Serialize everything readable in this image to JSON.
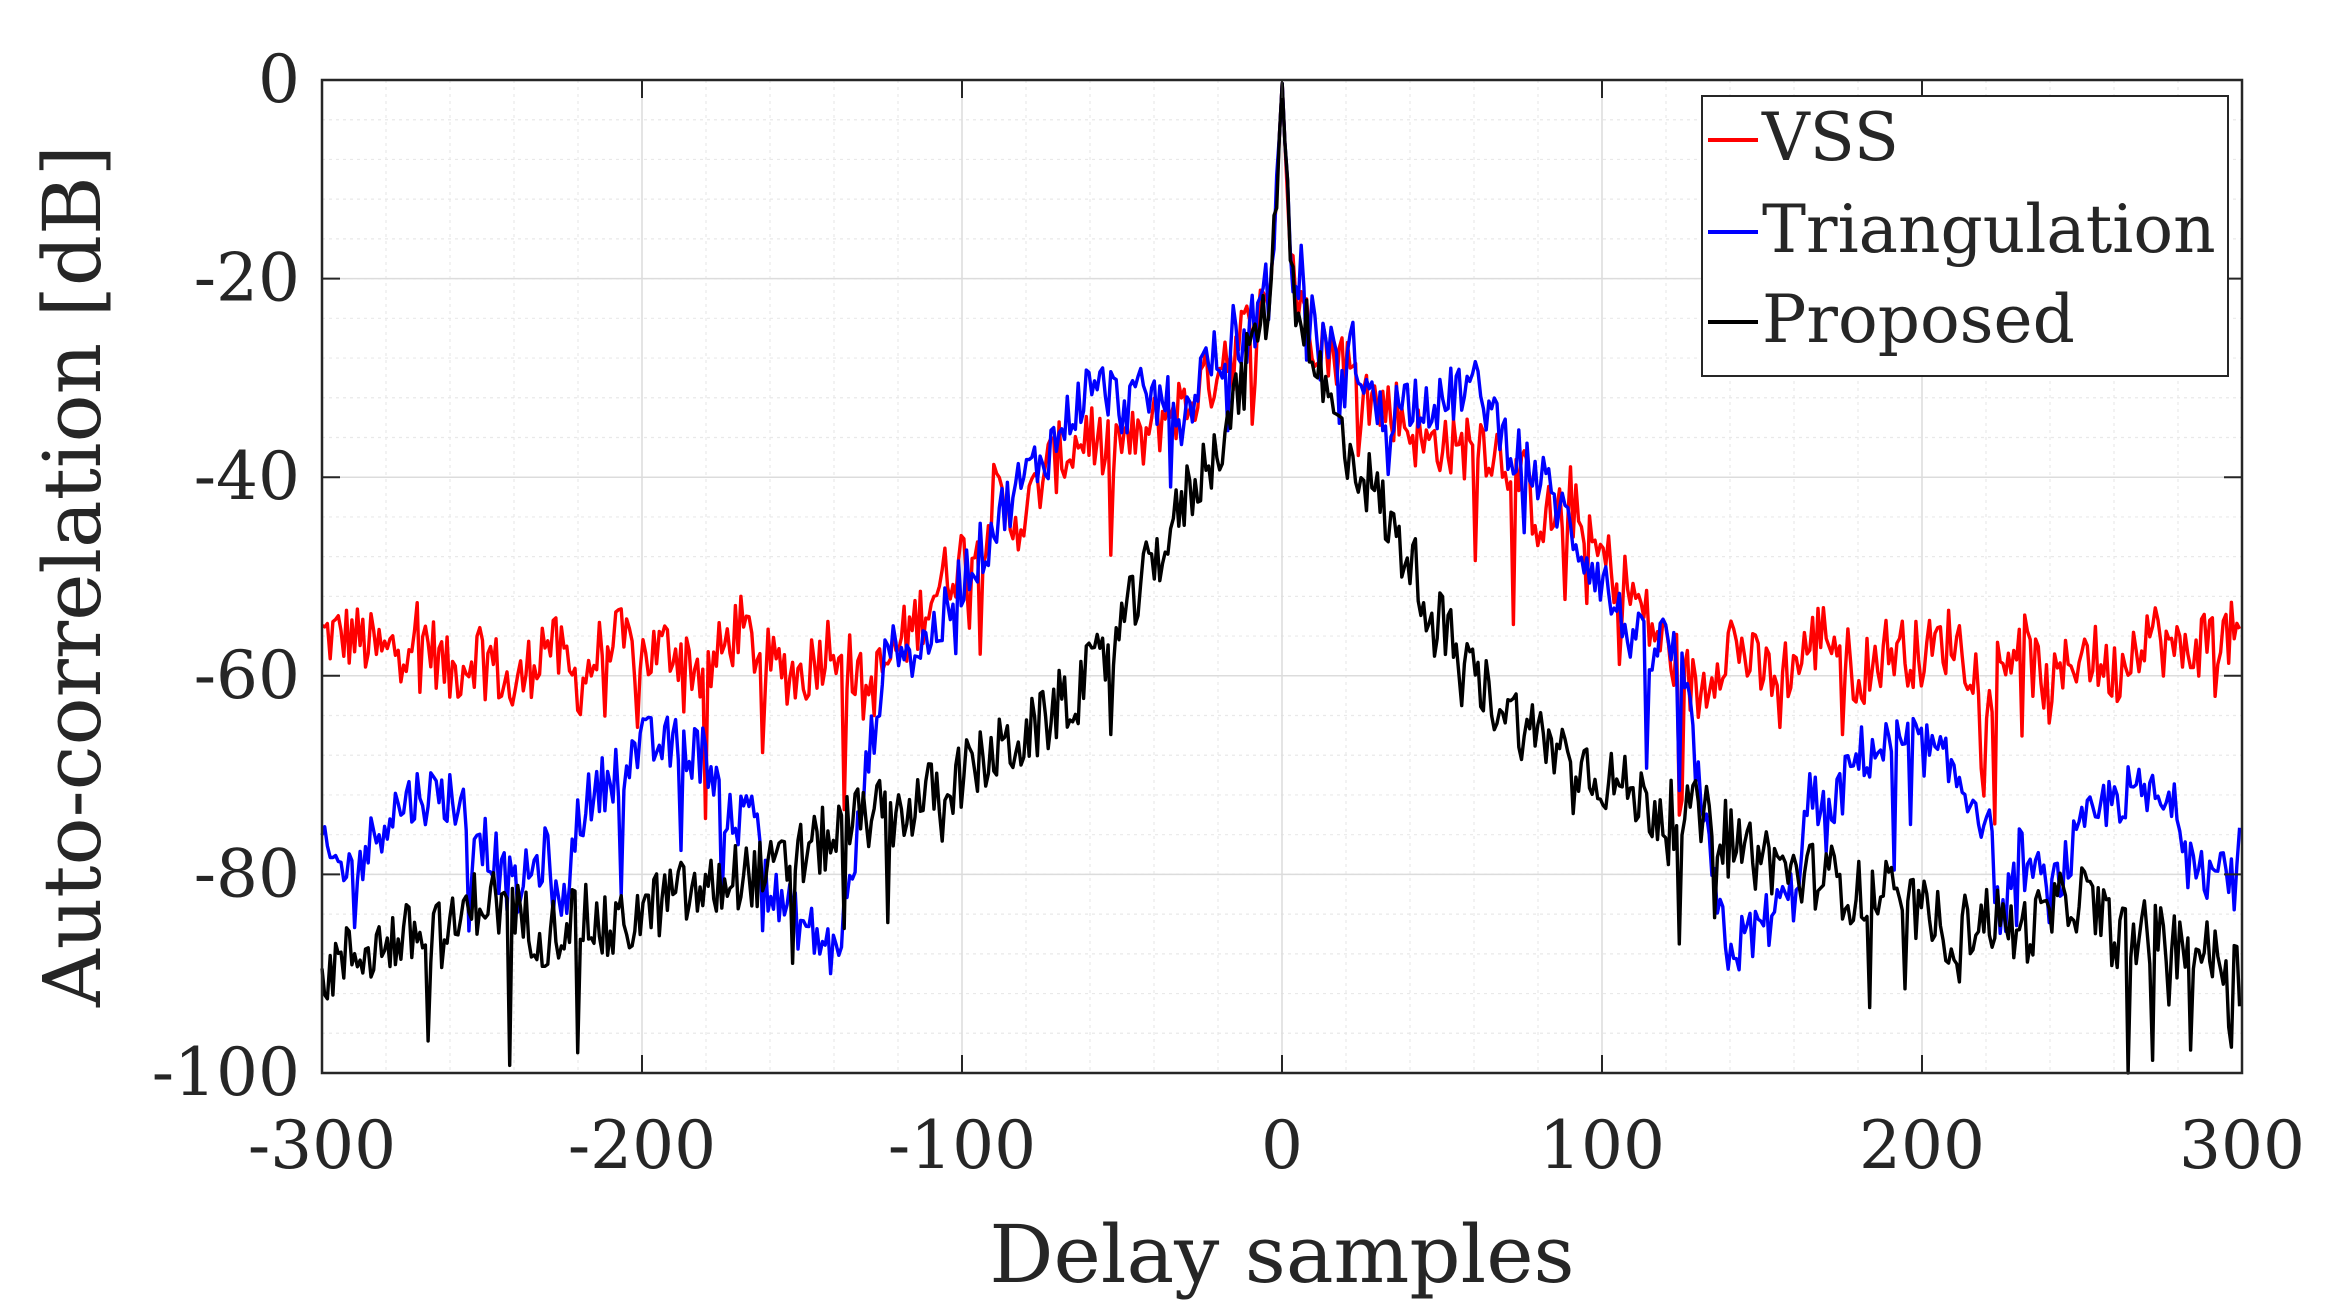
{
  "chart_data": {
    "type": "line",
    "title": "",
    "xlabel": "Delay samples",
    "ylabel": "Auto-correlation [dB]",
    "xlim": [
      -300,
      300
    ],
    "ylim": [
      -100,
      0
    ],
    "xticks": [
      -300,
      -200,
      -100,
      0,
      100,
      200,
      300
    ],
    "yticks": [
      0,
      -20,
      -40,
      -60,
      -80,
      -100
    ],
    "xtick_labels": [
      "-300",
      "-200",
      "-100",
      "0",
      "100",
      "200",
      "300"
    ],
    "ytick_labels": [
      "0",
      "-20",
      "-40",
      "-60",
      "-80",
      "-100"
    ],
    "grid": true,
    "legend_position": "top-right",
    "series": [
      {
        "name": "VSS",
        "color": "#ff0000",
        "symmetric": true,
        "x": [
          0,
          2,
          4,
          6,
          8,
          10,
          12,
          15,
          18,
          22,
          26,
          30,
          35,
          40,
          45,
          50,
          55,
          60,
          65,
          70,
          75,
          80,
          85,
          90,
          95,
          100,
          105,
          110,
          115,
          120,
          130,
          140,
          150,
          160,
          170,
          180,
          190,
          200,
          210,
          220,
          230,
          240,
          250,
          260,
          270,
          280,
          290,
          300
        ],
        "y": [
          0,
          -14,
          -20,
          -24,
          -22,
          -26,
          -25,
          -28,
          -27,
          -30,
          -31,
          -33,
          -33,
          -35,
          -37,
          -36,
          -38,
          -35,
          -37,
          -38,
          -40,
          -44,
          -44,
          -42,
          -47,
          -48,
          -50,
          -52,
          -55,
          -57,
          -62,
          -56,
          -60,
          -59,
          -55,
          -60,
          -57,
          -58,
          -56,
          -61,
          -56,
          -62,
          -57,
          -60,
          -55,
          -58,
          -56,
          -56
        ]
      },
      {
        "name": "Triangulation",
        "color": "#0000ff",
        "symmetric": true,
        "x": [
          0,
          2,
          4,
          6,
          8,
          10,
          12,
          15,
          18,
          22,
          26,
          30,
          35,
          40,
          45,
          50,
          55,
          60,
          65,
          70,
          75,
          80,
          85,
          90,
          95,
          100,
          105,
          110,
          115,
          120,
          125,
          130,
          135,
          140,
          150,
          160,
          165,
          170,
          180,
          190,
          200,
          210,
          220,
          225,
          230,
          240,
          250,
          260,
          270,
          280,
          290,
          300
        ],
        "y": [
          0,
          -14,
          -22,
          -18,
          -27,
          -23,
          -28,
          -25,
          -32,
          -27,
          -30,
          -34,
          -33,
          -32,
          -32,
          -33,
          -31,
          -31,
          -33,
          -36,
          -38,
          -40,
          -42,
          -45,
          -48,
          -50,
          -54,
          -56,
          -58,
          -56,
          -60,
          -70,
          -82,
          -88,
          -85,
          -82,
          -72,
          -75,
          -68,
          -67,
          -67,
          -70,
          -74,
          -85,
          -78,
          -82,
          -76,
          -72,
          -72,
          -74,
          -80,
          -78
        ]
      },
      {
        "name": "Proposed",
        "color": "#000000",
        "symmetric": true,
        "x": [
          0,
          2,
          4,
          6,
          8,
          10,
          12,
          15,
          18,
          22,
          26,
          30,
          35,
          40,
          45,
          50,
          55,
          60,
          65,
          70,
          75,
          80,
          85,
          90,
          95,
          100,
          110,
          120,
          130,
          140,
          150,
          160,
          170,
          180,
          190,
          200,
          210,
          220,
          230,
          240,
          250,
          260,
          270,
          280,
          290,
          300
        ],
        "y": [
          0,
          -14,
          -21,
          -25,
          -24,
          -28,
          -30,
          -33,
          -35,
          -38,
          -40,
          -42,
          -46,
          -48,
          -52,
          -55,
          -58,
          -60,
          -62,
          -63,
          -65,
          -66,
          -67,
          -68,
          -69,
          -70,
          -72,
          -74,
          -74,
          -76,
          -78,
          -80,
          -80,
          -82,
          -82,
          -84,
          -86,
          -84,
          -86,
          -84,
          -82,
          -86,
          -86,
          -87,
          -88,
          -90
        ]
      }
    ]
  }
}
